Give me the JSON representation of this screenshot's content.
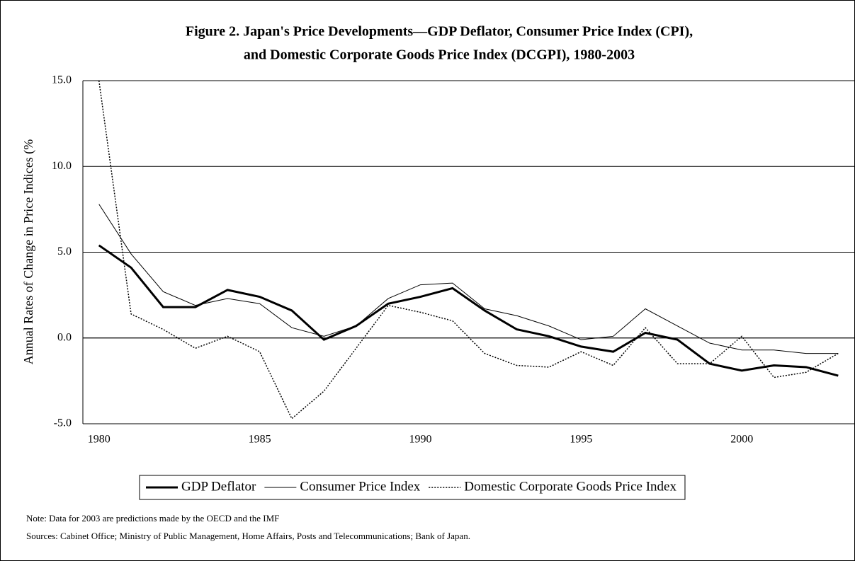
{
  "chart_data": {
    "type": "line",
    "title": [
      "Figure 2. Japan's Price Developments—GDP Deflator, Consumer Price Index (CPI),",
      "and Domestic Corporate Goods Price Index (DCGPI), 1980-2003"
    ],
    "y_label": "Annual Rates of Change in Price Indices (%",
    "x": [
      1980,
      1981,
      1982,
      1983,
      1984,
      1985,
      1986,
      1987,
      1988,
      1989,
      1990,
      1991,
      1992,
      1993,
      1994,
      1995,
      1996,
      1997,
      1998,
      1999,
      2000,
      2001,
      2002,
      2003
    ],
    "xlim": [
      1979.5,
      2003.5
    ],
    "xticks": [
      1980,
      1985,
      1990,
      1995,
      2000
    ],
    "ylim": [
      -5,
      15
    ],
    "yticks": [
      {
        "value": 15,
        "label": "15.0"
      },
      {
        "value": 10,
        "label": "10.0"
      },
      {
        "value": 5,
        "label": "5.0"
      },
      {
        "value": 0,
        "label": "0.0"
      },
      {
        "value": -5,
        "label": "-5.0"
      }
    ],
    "grid": true,
    "series": [
      {
        "name": "GDP Deflator",
        "color": "#000000",
        "width": 3,
        "style": "solid",
        "values": [
          5.4,
          4.1,
          1.8,
          1.8,
          2.8,
          2.4,
          1.6,
          -0.1,
          0.7,
          2.0,
          2.4,
          2.9,
          1.6,
          0.5,
          0.1,
          -0.5,
          -0.8,
          0.3,
          -0.1,
          -1.5,
          -1.9,
          -1.6,
          -1.7,
          -2.2
        ]
      },
      {
        "name": "Consumer Price Index",
        "color": "#000000",
        "width": 1,
        "style": "solid",
        "values": [
          7.8,
          4.9,
          2.7,
          1.9,
          2.3,
          2.0,
          0.6,
          0.1,
          0.7,
          2.3,
          3.1,
          3.2,
          1.7,
          1.3,
          0.7,
          -0.1,
          0.1,
          1.7,
          0.7,
          -0.3,
          -0.7,
          -0.7,
          -0.9,
          -0.9
        ]
      },
      {
        "name": "Domestic Corporate Goods Price Index",
        "color": "#000000",
        "width": 1.5,
        "style": "dotted",
        "values": [
          15.0,
          1.4,
          0.5,
          -0.6,
          0.1,
          -0.8,
          -4.7,
          -3.1,
          -0.6,
          1.9,
          1.5,
          1.0,
          -0.9,
          -1.6,
          -1.7,
          -0.8,
          -1.6,
          0.6,
          -1.5,
          -1.5,
          0.1,
          -2.3,
          -2.0,
          -0.9
        ]
      }
    ],
    "notes": [
      "Note: Data for 2003 are predictions made by the OECD and the IMF",
      "Sources: Cabinet Office; Ministry of Public Management, Home Affairs, Posts and Telecommunications; Bank of Japan."
    ]
  }
}
